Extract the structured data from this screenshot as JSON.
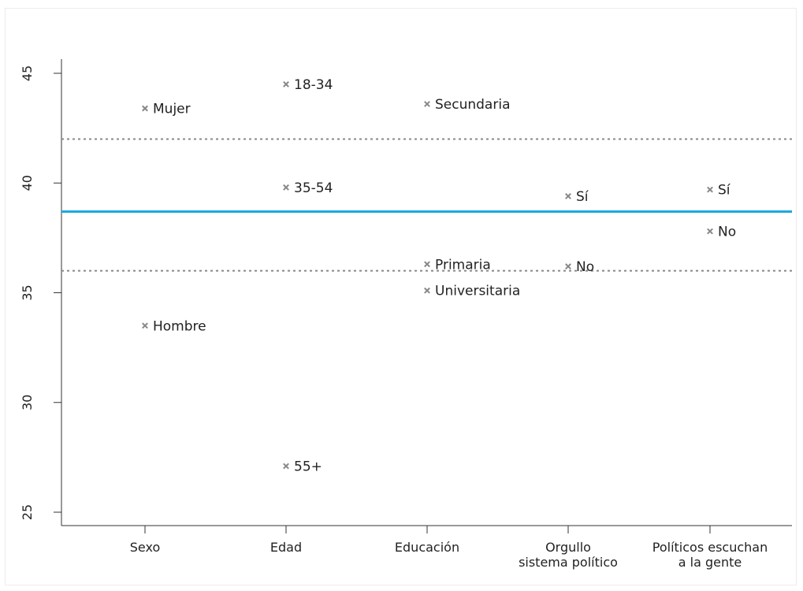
{
  "chart_data": {
    "type": "scatter",
    "title": "",
    "xlabel": "",
    "ylabel": "",
    "ylim": [
      25,
      45
    ],
    "yticks": [
      25,
      30,
      35,
      40,
      45
    ],
    "grid": false,
    "categories": [
      {
        "lines": [
          "Sexo"
        ]
      },
      {
        "lines": [
          "Edad"
        ]
      },
      {
        "lines": [
          "Educación"
        ]
      },
      {
        "lines": [
          "Orgullo",
          "sistema político"
        ]
      },
      {
        "lines": [
          "Políticos escuchan",
          "a la gente"
        ]
      }
    ],
    "points": [
      {
        "category": 0,
        "label": "Mujer",
        "value": 43.4
      },
      {
        "category": 0,
        "label": "Hombre",
        "value": 33.5
      },
      {
        "category": 1,
        "label": "18-34",
        "value": 44.5
      },
      {
        "category": 1,
        "label": "35-54",
        "value": 39.8
      },
      {
        "category": 1,
        "label": "55+",
        "value": 27.1
      },
      {
        "category": 2,
        "label": "Secundaria",
        "value": 43.6
      },
      {
        "category": 2,
        "label": "Primaria",
        "value": 36.3
      },
      {
        "category": 2,
        "label": "Universitaria",
        "value": 35.1
      },
      {
        "category": 3,
        "label": "Sí",
        "value": 39.4
      },
      {
        "category": 3,
        "label": "No",
        "value": 36.2
      },
      {
        "category": 4,
        "label": "Sí",
        "value": 39.7
      },
      {
        "category": 4,
        "label": "No",
        "value": 37.8
      }
    ],
    "reference_lines": [
      {
        "kind": "mean",
        "value": 38.7,
        "style": "solid",
        "color": "#1aa9e0"
      },
      {
        "kind": "upper-bound",
        "value": 42.0,
        "style": "dotted",
        "color": "#888888"
      },
      {
        "kind": "lower-bound",
        "value": 36.0,
        "style": "dotted",
        "color": "#888888"
      }
    ],
    "marker": "x",
    "marker_color": "#888888"
  }
}
